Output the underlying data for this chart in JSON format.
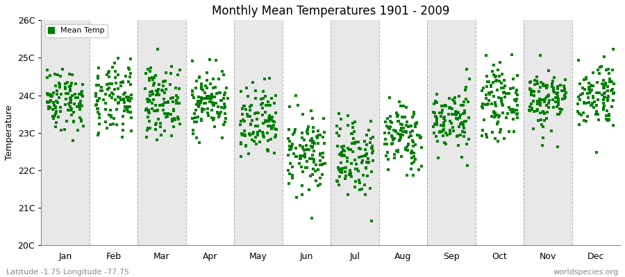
{
  "title": "Monthly Mean Temperatures 1901 - 2009",
  "ylabel": "Temperature",
  "xlabel": "",
  "subtitle_left": "Latitude -1.75 Longitude -77.75",
  "subtitle_right": "worldspecies.org",
  "legend_label": "Mean Temp",
  "ylim": [
    20,
    26
  ],
  "yticks": [
    20,
    21,
    22,
    23,
    24,
    25,
    26
  ],
  "ytick_labels": [
    "20C",
    "21C",
    "22C",
    "23C",
    "24C",
    "25C",
    "26C"
  ],
  "months": [
    "Jan",
    "Feb",
    "Mar",
    "Apr",
    "May",
    "Jun",
    "Jul",
    "Aug",
    "Sep",
    "Oct",
    "Nov",
    "Dec"
  ],
  "marker_color": "#008000",
  "marker": "s",
  "marker_size": 2.5,
  "background_color": "#ffffff",
  "band_color_white": "#ffffff",
  "band_color_gray": "#e8e8e8",
  "dashed_line_color": "#999999",
  "month_means": [
    23.9,
    23.85,
    23.85,
    23.85,
    23.2,
    22.45,
    22.35,
    22.9,
    23.35,
    23.85,
    23.9,
    24.05
  ],
  "month_stds": [
    0.42,
    0.48,
    0.45,
    0.42,
    0.5,
    0.52,
    0.52,
    0.45,
    0.42,
    0.45,
    0.42,
    0.45
  ],
  "n_years": 109,
  "seed": 42
}
